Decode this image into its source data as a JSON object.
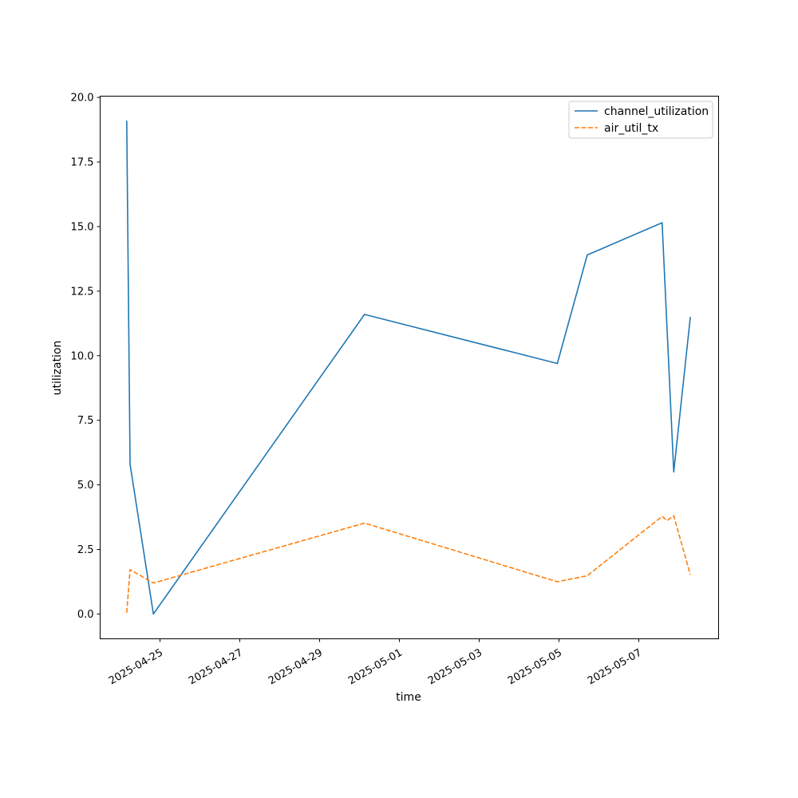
{
  "chart_data": {
    "type": "line",
    "title": "",
    "xlabel": "time",
    "ylabel": "utilization",
    "xlim": [
      "2025-04-23 12:00",
      "2025-05-09 00:00"
    ],
    "ylim": [
      -0.96,
      20.05
    ],
    "xticks": [
      "2025-04-25",
      "2025-04-27",
      "2025-04-29",
      "2025-05-01",
      "2025-05-03",
      "2025-05-05",
      "2025-05-07"
    ],
    "yticks": [
      0.0,
      2.5,
      5.0,
      7.5,
      10.0,
      12.5,
      15.0,
      17.5,
      20.0
    ],
    "ytick_labels": [
      "0.0",
      "2.5",
      "5.0",
      "7.5",
      "10.0",
      "12.5",
      "15.0",
      "17.5",
      "20.0"
    ],
    "grid": false,
    "legend_position": "top-right",
    "series": [
      {
        "name": "channel_utilization",
        "color": "#1f77b4",
        "style": "solid",
        "points": [
          [
            "2025-04-24 04:00",
            19.1
          ],
          [
            "2025-04-24 06:00",
            5.8
          ],
          [
            "2025-04-24 20:00",
            0.0
          ],
          [
            "2025-04-30 03:00",
            11.6
          ],
          [
            "2025-05-04 23:00",
            9.7
          ],
          [
            "2025-05-05 17:00",
            13.9
          ],
          [
            "2025-05-07 14:00",
            15.15
          ],
          [
            "2025-05-07 21:00",
            5.5
          ],
          [
            "2025-05-08 07:00",
            11.5
          ]
        ]
      },
      {
        "name": "air_util_tx",
        "color": "#ff7f0e",
        "style": "dashed",
        "points": [
          [
            "2025-04-24 04:00",
            0.05
          ],
          [
            "2025-04-24 06:00",
            1.72
          ],
          [
            "2025-04-24 20:00",
            1.2
          ],
          [
            "2025-04-30 03:00",
            3.52
          ],
          [
            "2025-05-04 23:00",
            1.25
          ],
          [
            "2025-05-05 17:00",
            1.48
          ],
          [
            "2025-05-07 14:00",
            3.78
          ],
          [
            "2025-05-07 17:00",
            3.62
          ],
          [
            "2025-05-07 21:00",
            3.8
          ],
          [
            "2025-05-08 07:00",
            1.52
          ]
        ]
      }
    ]
  }
}
